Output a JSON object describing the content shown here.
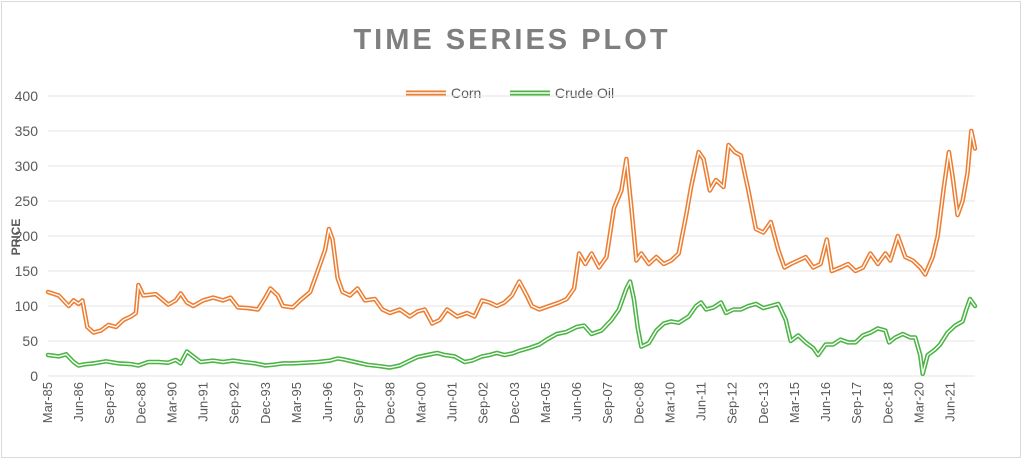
{
  "chart_data": {
    "type": "line",
    "title": "TIME SERIES PLOT",
    "xlabel": "",
    "ylabel": "PRICE",
    "ylim": [
      0,
      400
    ],
    "yticks": [
      "0",
      "50",
      "100",
      "150",
      "200",
      "250",
      "300",
      "350",
      "400"
    ],
    "x_tick_labels": [
      "Mar-85",
      "Jun-86",
      "Sep-87",
      "Dec-88",
      "Mar-90",
      "Jun-91",
      "Sep-92",
      "Dec-93",
      "Mar-95",
      "Jun-96",
      "Sep-97",
      "Dec-98",
      "Mar-00",
      "Jun-01",
      "Sep-02",
      "Dec-03",
      "Mar-05",
      "Jun-06",
      "Sep-07",
      "Dec-08",
      "Mar-10",
      "Jun-11",
      "Sep-12",
      "Dec-13",
      "Mar-15",
      "Jun-16",
      "Sep-17",
      "Dec-18",
      "Mar-20",
      "Jun-21"
    ],
    "x_range_years": [
      1985.17,
      2022.4
    ],
    "grid": "horizontal",
    "legend_position": "top",
    "series": [
      {
        "name": "Corn",
        "color": "#ed7d31",
        "points": [
          [
            1985.17,
            120
          ],
          [
            1985.6,
            115
          ],
          [
            1986.0,
            100
          ],
          [
            1986.2,
            108
          ],
          [
            1986.4,
            103
          ],
          [
            1986.55,
            108
          ],
          [
            1986.75,
            70
          ],
          [
            1987.0,
            62
          ],
          [
            1987.3,
            65
          ],
          [
            1987.6,
            73
          ],
          [
            1987.9,
            70
          ],
          [
            1988.2,
            80
          ],
          [
            1988.5,
            85
          ],
          [
            1988.7,
            90
          ],
          [
            1988.8,
            130
          ],
          [
            1989.0,
            115
          ],
          [
            1989.5,
            117
          ],
          [
            1990.0,
            102
          ],
          [
            1990.3,
            108
          ],
          [
            1990.5,
            118
          ],
          [
            1990.75,
            105
          ],
          [
            1991.0,
            100
          ],
          [
            1991.4,
            108
          ],
          [
            1991.8,
            112
          ],
          [
            1992.2,
            108
          ],
          [
            1992.5,
            112
          ],
          [
            1992.8,
            98
          ],
          [
            1993.2,
            97
          ],
          [
            1993.6,
            95
          ],
          [
            1993.9,
            112
          ],
          [
            1994.1,
            125
          ],
          [
            1994.4,
            115
          ],
          [
            1994.6,
            100
          ],
          [
            1995.0,
            98
          ],
          [
            1995.3,
            108
          ],
          [
            1995.7,
            120
          ],
          [
            1996.0,
            150
          ],
          [
            1996.3,
            180
          ],
          [
            1996.45,
            210
          ],
          [
            1996.6,
            195
          ],
          [
            1996.8,
            140
          ],
          [
            1997.0,
            120
          ],
          [
            1997.3,
            115
          ],
          [
            1997.6,
            125
          ],
          [
            1997.9,
            108
          ],
          [
            1998.3,
            110
          ],
          [
            1998.6,
            95
          ],
          [
            1998.9,
            90
          ],
          [
            1999.3,
            95
          ],
          [
            1999.7,
            85
          ],
          [
            2000.0,
            92
          ],
          [
            2000.3,
            95
          ],
          [
            2000.6,
            75
          ],
          [
            2000.9,
            80
          ],
          [
            2001.2,
            95
          ],
          [
            2001.6,
            85
          ],
          [
            2002.0,
            90
          ],
          [
            2002.3,
            85
          ],
          [
            2002.6,
            108
          ],
          [
            2002.9,
            105
          ],
          [
            2003.2,
            100
          ],
          [
            2003.5,
            105
          ],
          [
            2003.8,
            115
          ],
          [
            2004.1,
            135
          ],
          [
            2004.4,
            115
          ],
          [
            2004.6,
            100
          ],
          [
            2004.9,
            95
          ],
          [
            2005.3,
            100
          ],
          [
            2005.7,
            105
          ],
          [
            2006.0,
            110
          ],
          [
            2006.3,
            125
          ],
          [
            2006.5,
            175
          ],
          [
            2006.75,
            160
          ],
          [
            2007.0,
            175
          ],
          [
            2007.3,
            155
          ],
          [
            2007.6,
            170
          ],
          [
            2007.9,
            240
          ],
          [
            2008.2,
            265
          ],
          [
            2008.4,
            310
          ],
          [
            2008.6,
            240
          ],
          [
            2008.8,
            165
          ],
          [
            2009.0,
            175
          ],
          [
            2009.3,
            160
          ],
          [
            2009.6,
            170
          ],
          [
            2009.9,
            160
          ],
          [
            2010.2,
            165
          ],
          [
            2010.5,
            175
          ],
          [
            2010.8,
            230
          ],
          [
            2011.0,
            270
          ],
          [
            2011.3,
            320
          ],
          [
            2011.5,
            310
          ],
          [
            2011.75,
            265
          ],
          [
            2012.0,
            280
          ],
          [
            2012.3,
            270
          ],
          [
            2012.5,
            330
          ],
          [
            2012.75,
            320
          ],
          [
            2013.0,
            315
          ],
          [
            2013.3,
            265
          ],
          [
            2013.6,
            210
          ],
          [
            2013.9,
            205
          ],
          [
            2014.2,
            220
          ],
          [
            2014.5,
            180
          ],
          [
            2014.75,
            155
          ],
          [
            2015.0,
            160
          ],
          [
            2015.3,
            165
          ],
          [
            2015.6,
            170
          ],
          [
            2015.9,
            155
          ],
          [
            2016.2,
            160
          ],
          [
            2016.45,
            195
          ],
          [
            2016.65,
            150
          ],
          [
            2017.0,
            155
          ],
          [
            2017.3,
            160
          ],
          [
            2017.6,
            150
          ],
          [
            2017.9,
            155
          ],
          [
            2018.2,
            175
          ],
          [
            2018.5,
            160
          ],
          [
            2018.8,
            175
          ],
          [
            2019.0,
            165
          ],
          [
            2019.3,
            200
          ],
          [
            2019.6,
            170
          ],
          [
            2019.9,
            165
          ],
          [
            2020.2,
            155
          ],
          [
            2020.4,
            145
          ],
          [
            2020.7,
            170
          ],
          [
            2020.9,
            200
          ],
          [
            2021.15,
            270
          ],
          [
            2021.35,
            320
          ],
          [
            2021.5,
            285
          ],
          [
            2021.7,
            230
          ],
          [
            2021.9,
            250
          ],
          [
            2022.1,
            290
          ],
          [
            2022.25,
            350
          ],
          [
            2022.4,
            325
          ]
        ]
      },
      {
        "name": "Crude Oil",
        "color": "#4cb445",
        "points": [
          [
            1985.17,
            30
          ],
          [
            1985.6,
            28
          ],
          [
            1985.9,
            31
          ],
          [
            1986.2,
            20
          ],
          [
            1986.4,
            15
          ],
          [
            1986.7,
            17
          ],
          [
            1987.0,
            18
          ],
          [
            1987.5,
            21
          ],
          [
            1988.0,
            18
          ],
          [
            1988.5,
            17
          ],
          [
            1988.8,
            15
          ],
          [
            1989.2,
            20
          ],
          [
            1989.6,
            20
          ],
          [
            1990.0,
            19
          ],
          [
            1990.3,
            23
          ],
          [
            1990.5,
            18
          ],
          [
            1990.75,
            35
          ],
          [
            1991.0,
            28
          ],
          [
            1991.3,
            20
          ],
          [
            1991.8,
            22
          ],
          [
            1992.2,
            20
          ],
          [
            1992.6,
            22
          ],
          [
            1993.0,
            20
          ],
          [
            1993.5,
            18
          ],
          [
            1993.9,
            15
          ],
          [
            1994.2,
            16
          ],
          [
            1994.6,
            18
          ],
          [
            1995.0,
            18
          ],
          [
            1995.5,
            19
          ],
          [
            1996.0,
            20
          ],
          [
            1996.5,
            22
          ],
          [
            1996.8,
            25
          ],
          [
            1997.0,
            24
          ],
          [
            1997.5,
            20
          ],
          [
            1998.0,
            16
          ],
          [
            1998.5,
            14
          ],
          [
            1998.9,
            12
          ],
          [
            1999.3,
            15
          ],
          [
            1999.7,
            22
          ],
          [
            2000.0,
            27
          ],
          [
            2000.4,
            30
          ],
          [
            2000.8,
            33
          ],
          [
            2001.1,
            30
          ],
          [
            2001.5,
            28
          ],
          [
            2001.9,
            20
          ],
          [
            2002.2,
            22
          ],
          [
            2002.6,
            28
          ],
          [
            2002.9,
            30
          ],
          [
            2003.2,
            33
          ],
          [
            2003.5,
            30
          ],
          [
            2003.8,
            32
          ],
          [
            2004.1,
            36
          ],
          [
            2004.5,
            40
          ],
          [
            2004.9,
            45
          ],
          [
            2005.2,
            52
          ],
          [
            2005.6,
            60
          ],
          [
            2006.0,
            63
          ],
          [
            2006.4,
            70
          ],
          [
            2006.7,
            72
          ],
          [
            2007.0,
            60
          ],
          [
            2007.4,
            65
          ],
          [
            2007.8,
            80
          ],
          [
            2008.1,
            95
          ],
          [
            2008.4,
            125
          ],
          [
            2008.55,
            135
          ],
          [
            2008.7,
            110
          ],
          [
            2008.85,
            70
          ],
          [
            2009.0,
            42
          ],
          [
            2009.3,
            47
          ],
          [
            2009.6,
            65
          ],
          [
            2009.9,
            75
          ],
          [
            2010.2,
            78
          ],
          [
            2010.5,
            76
          ],
          [
            2010.9,
            85
          ],
          [
            2011.2,
            100
          ],
          [
            2011.4,
            105
          ],
          [
            2011.6,
            95
          ],
          [
            2011.9,
            98
          ],
          [
            2012.2,
            105
          ],
          [
            2012.4,
            90
          ],
          [
            2012.7,
            95
          ],
          [
            2013.0,
            95
          ],
          [
            2013.3,
            100
          ],
          [
            2013.6,
            103
          ],
          [
            2013.9,
            97
          ],
          [
            2014.2,
            100
          ],
          [
            2014.5,
            103
          ],
          [
            2014.8,
            80
          ],
          [
            2015.0,
            50
          ],
          [
            2015.3,
            58
          ],
          [
            2015.6,
            48
          ],
          [
            2015.9,
            40
          ],
          [
            2016.1,
            30
          ],
          [
            2016.4,
            45
          ],
          [
            2016.7,
            45
          ],
          [
            2017.0,
            52
          ],
          [
            2017.3,
            48
          ],
          [
            2017.6,
            48
          ],
          [
            2017.9,
            58
          ],
          [
            2018.2,
            62
          ],
          [
            2018.5,
            68
          ],
          [
            2018.8,
            65
          ],
          [
            2018.95,
            48
          ],
          [
            2019.2,
            55
          ],
          [
            2019.5,
            60
          ],
          [
            2019.8,
            55
          ],
          [
            2020.0,
            55
          ],
          [
            2020.2,
            30
          ],
          [
            2020.3,
            3
          ],
          [
            2020.5,
            30
          ],
          [
            2020.8,
            38
          ],
          [
            2021.0,
            45
          ],
          [
            2021.3,
            62
          ],
          [
            2021.6,
            72
          ],
          [
            2021.9,
            78
          ],
          [
            2022.05,
            95
          ],
          [
            2022.2,
            110
          ],
          [
            2022.4,
            100
          ]
        ]
      }
    ]
  }
}
